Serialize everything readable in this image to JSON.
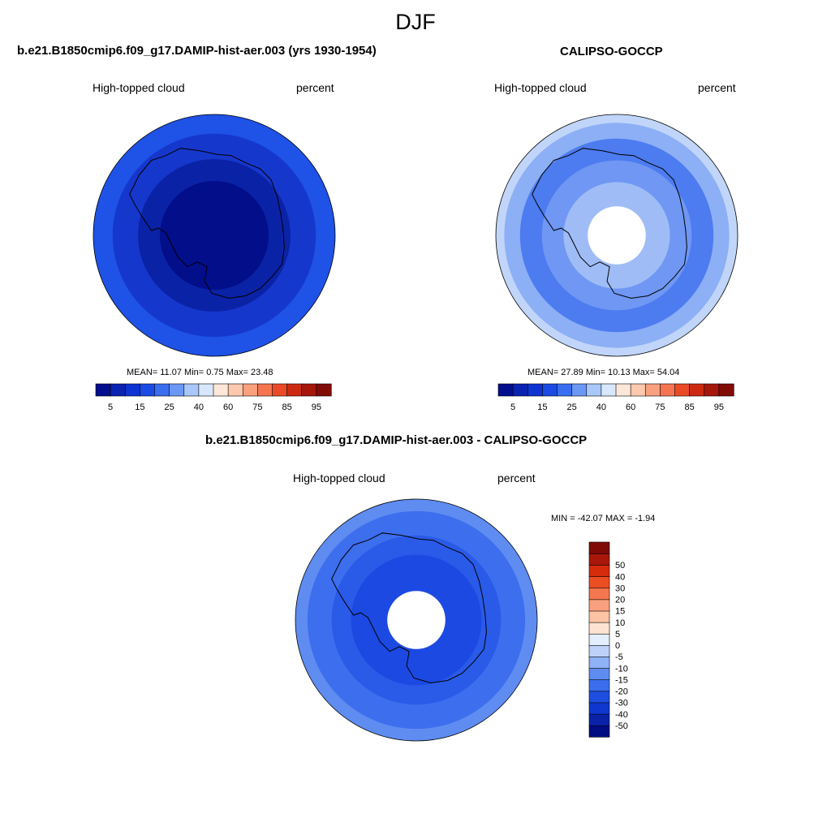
{
  "figure": {
    "season": "DJF"
  },
  "panels": [
    {
      "id": "model",
      "title": "b.e21.B1850cmip6.f09_g17.DAMIP-hist-aer.003 (yrs 1930-1954)",
      "left_label": "High-topped cloud",
      "right_label": "percent",
      "stats": "MEAN=  11.07  Min=   0.75  Max=  23.48",
      "colorbar": {
        "colors": [
          "#020e8c",
          "#0a23b0",
          "#0d34d2",
          "#1a4be4",
          "#3a6ef0",
          "#6a98f4",
          "#a9c7f8",
          "#d8e7fb",
          "#fde7d8",
          "#fcc8ae",
          "#f9a07e",
          "#f57550",
          "#eb4a26",
          "#cc2a10",
          "#a5170a",
          "#810c05"
        ],
        "labels": [
          "5",
          "15",
          "25",
          "40",
          "60",
          "75",
          "85",
          "95"
        ]
      },
      "map_levels": [
        {
          "r": 1.0,
          "color": "#1f52e6"
        },
        {
          "r": 0.84,
          "color": "#1637cc"
        },
        {
          "r": 0.63,
          "color": "#0a22a6"
        },
        {
          "r": 0.45,
          "color": "#020e8a"
        }
      ],
      "pole_hole": false
    },
    {
      "id": "obs",
      "title": "CALIPSO-GOCCP",
      "left_label": "High-topped cloud",
      "right_label": "percent",
      "stats": "MEAN=  27.89  Min=  10.13  Max=  54.04",
      "colorbar": {
        "colors": [
          "#020e8c",
          "#0a23b0",
          "#0d34d2",
          "#1a4be4",
          "#3a6ef0",
          "#6a98f4",
          "#a9c7f8",
          "#d8e7fb",
          "#fde7d8",
          "#fcc8ae",
          "#f9a07e",
          "#f57550",
          "#eb4a26",
          "#cc2a10",
          "#a5170a",
          "#810c05"
        ],
        "labels": [
          "5",
          "15",
          "25",
          "40",
          "60",
          "75",
          "85",
          "95"
        ]
      },
      "map_levels": [
        {
          "r": 1.0,
          "color": "#c0d5f9"
        },
        {
          "r": 0.93,
          "color": "#8caff5"
        },
        {
          "r": 0.8,
          "color": "#4d7bf0"
        },
        {
          "r": 0.62,
          "color": "#6f97f3"
        },
        {
          "r": 0.44,
          "color": "#9fbcf6"
        }
      ],
      "pole_hole": true
    },
    {
      "id": "diff",
      "title": "b.e21.B1850cmip6.f09_g17.DAMIP-hist-aer.003 - CALIPSO-GOCCP",
      "left_label": "High-topped cloud",
      "right_label": "percent",
      "stats": "MIN = -42.07 MAX =  -1.94",
      "colorbar": {
        "colors": [
          "#010b82",
          "#0a22a8",
          "#0f37cf",
          "#1d4ee0",
          "#3b6ded",
          "#5e8cf1",
          "#8fb1f6",
          "#bed2f9",
          "#e4eefc",
          "#fde3d2",
          "#fcc3a5",
          "#f9a07e",
          "#f5774f",
          "#ec4e24",
          "#d52c0d",
          "#a9170a",
          "#800a05"
        ],
        "labels": [
          "-50",
          "-40",
          "-30",
          "-20",
          "-15",
          "-10",
          "-5",
          "0",
          "5",
          "10",
          "15",
          "20",
          "30",
          "40",
          "50"
        ]
      },
      "map_levels": [
        {
          "r": 1.0,
          "color": "#5f8cf1"
        },
        {
          "r": 0.9,
          "color": "#3d6eee"
        },
        {
          "r": 0.7,
          "color": "#2a5ae8"
        },
        {
          "r": 0.54,
          "color": "#1c49e2"
        }
      ],
      "pole_hole": true
    }
  ]
}
